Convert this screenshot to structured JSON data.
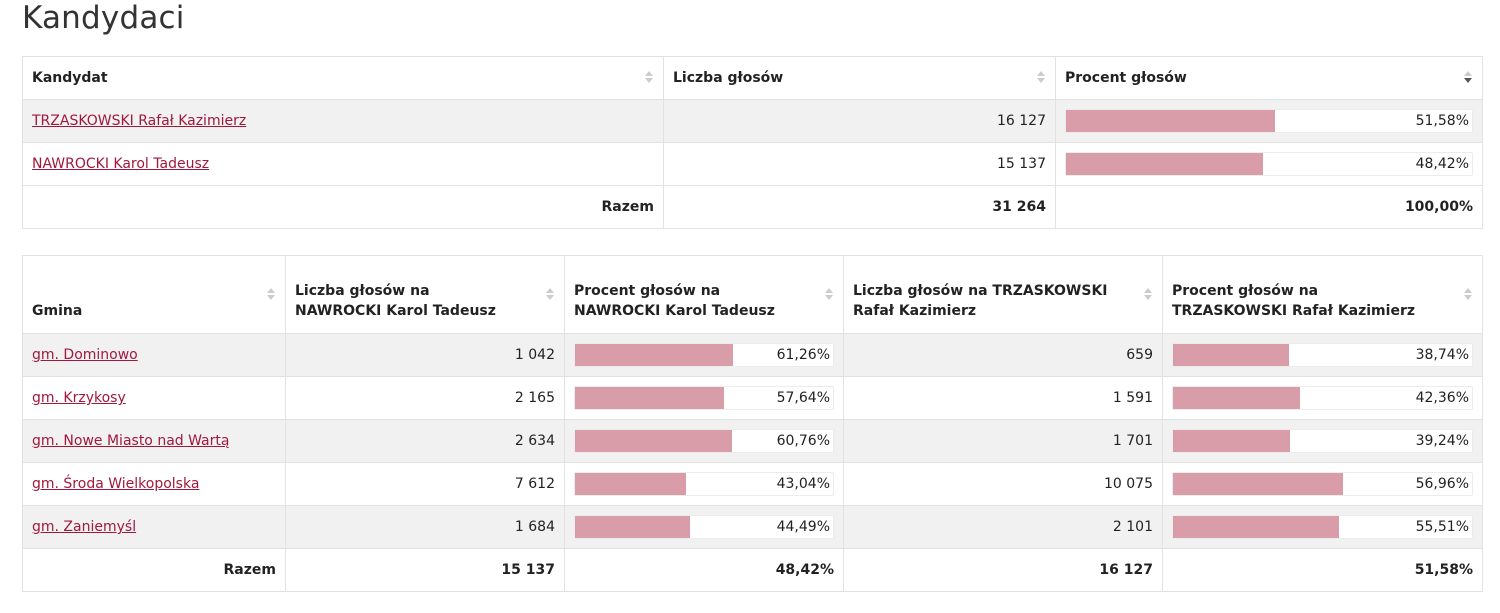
{
  "title": "Kandydaci",
  "colors": {
    "bar_fill": "#d99ca9",
    "link": "#a1183d"
  },
  "candidates_table": {
    "headers": {
      "candidate": "Kandydat",
      "votes": "Liczba głosów",
      "percent": "Procent głosów"
    },
    "rows": [
      {
        "name": "TRZASKOWSKI Rafał Kazimierz",
        "votes": "16 127",
        "percent": "51,58%",
        "share": 0.5158
      },
      {
        "name": "NAWROCKI Karol Tadeusz",
        "votes": "15 137",
        "percent": "48,42%",
        "share": 0.4842
      }
    ],
    "total": {
      "label": "Razem",
      "votes": "31 264",
      "percent": "100,00%"
    }
  },
  "municipalities_table": {
    "headers": {
      "gmina": "Gmina",
      "votes_a": "Liczba głosów na NAWROCKI Karol Tadeusz",
      "percent_a": "Procent głosów na NAWROCKI Karol Tadeusz",
      "votes_b": "Liczba głosów na TRZASKOWSKI Rafał Kazimierz",
      "percent_b": "Procent głosów na TRZASKOWSKI Rafał Kazimierz"
    },
    "rows": [
      {
        "name": "gm. Dominowo",
        "votes_a": "1 042",
        "percent_a": "61,26%",
        "share_a": 0.6126,
        "votes_b": "659",
        "percent_b": "38,74%",
        "share_b": 0.3874
      },
      {
        "name": "gm. Krzykosy",
        "votes_a": "2 165",
        "percent_a": "57,64%",
        "share_a": 0.5764,
        "votes_b": "1 591",
        "percent_b": "42,36%",
        "share_b": 0.4236
      },
      {
        "name": "gm. Nowe Miasto nad Wartą",
        "votes_a": "2 634",
        "percent_a": "60,76%",
        "share_a": 0.6076,
        "votes_b": "1 701",
        "percent_b": "39,24%",
        "share_b": 0.3924
      },
      {
        "name": "gm. Środa Wielkopolska",
        "votes_a": "7 612",
        "percent_a": "43,04%",
        "share_a": 0.4304,
        "votes_b": "10 075",
        "percent_b": "56,96%",
        "share_b": 0.5696
      },
      {
        "name": "gm. Zaniemyśl",
        "votes_a": "1 684",
        "percent_a": "44,49%",
        "share_a": 0.4449,
        "votes_b": "2 101",
        "percent_b": "55,51%",
        "share_b": 0.5551
      }
    ],
    "total": {
      "label": "Razem",
      "votes_a": "15 137",
      "percent_a": "48,42%",
      "votes_b": "16 127",
      "percent_b": "51,58%"
    }
  }
}
